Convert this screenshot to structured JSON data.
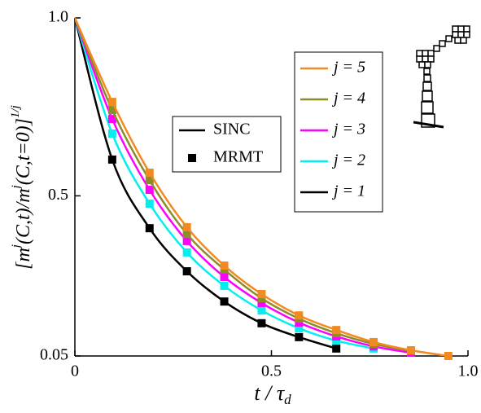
{
  "chart_data": {
    "type": "line",
    "ylabel_parts": [
      "[m",
      "j",
      "(C,t)/m",
      "j",
      "(C,t=0)]",
      "1/j"
    ],
    "xlabel_parts": [
      "t",
      " / τ",
      "d"
    ],
    "x": [
      0,
      0.095,
      0.19,
      0.285,
      0.38,
      0.475,
      0.57,
      0.665,
      0.76,
      0.855,
      0.95
    ],
    "line_legend": [
      "SINC",
      "MRMT"
    ],
    "series": [
      {
        "name": "j = 5",
        "color": "#f28a22",
        "values": [
          1,
          0.764,
          0.565,
          0.412,
          0.304,
          0.224,
          0.164,
          0.123,
          0.089,
          0.066,
          0.05
        ]
      },
      {
        "name": "j = 4",
        "color": "#8c8c28",
        "values": [
          1,
          0.741,
          0.544,
          0.393,
          0.293,
          0.212,
          0.155,
          0.114,
          0.084,
          0.064,
          null
        ]
      },
      {
        "name": "j = 3",
        "color": "#ff00ff",
        "values": [
          1,
          0.716,
          0.517,
          0.373,
          0.272,
          0.199,
          0.144,
          0.105,
          0.077,
          0.059,
          null
        ]
      },
      {
        "name": "j = 2",
        "color": "#00f0f0",
        "values": [
          1,
          0.675,
          0.478,
          0.341,
          0.247,
          0.178,
          0.128,
          0.093,
          0.071,
          null,
          null
        ]
      },
      {
        "name": "j = 1",
        "color": "#000000",
        "values": [
          1,
          0.602,
          0.409,
          0.288,
          0.203,
          0.142,
          0.103,
          0.071,
          null,
          null,
          null
        ]
      }
    ],
    "xlim": [
      0,
      1
    ],
    "xticks": [
      0,
      0.5,
      {
        "value": 1,
        "label": "1.0"
      }
    ],
    "ylim": [
      0.05,
      1
    ],
    "yticks": [
      0.05,
      0.5,
      {
        "value": 1,
        "label": "1.0"
      }
    ]
  }
}
